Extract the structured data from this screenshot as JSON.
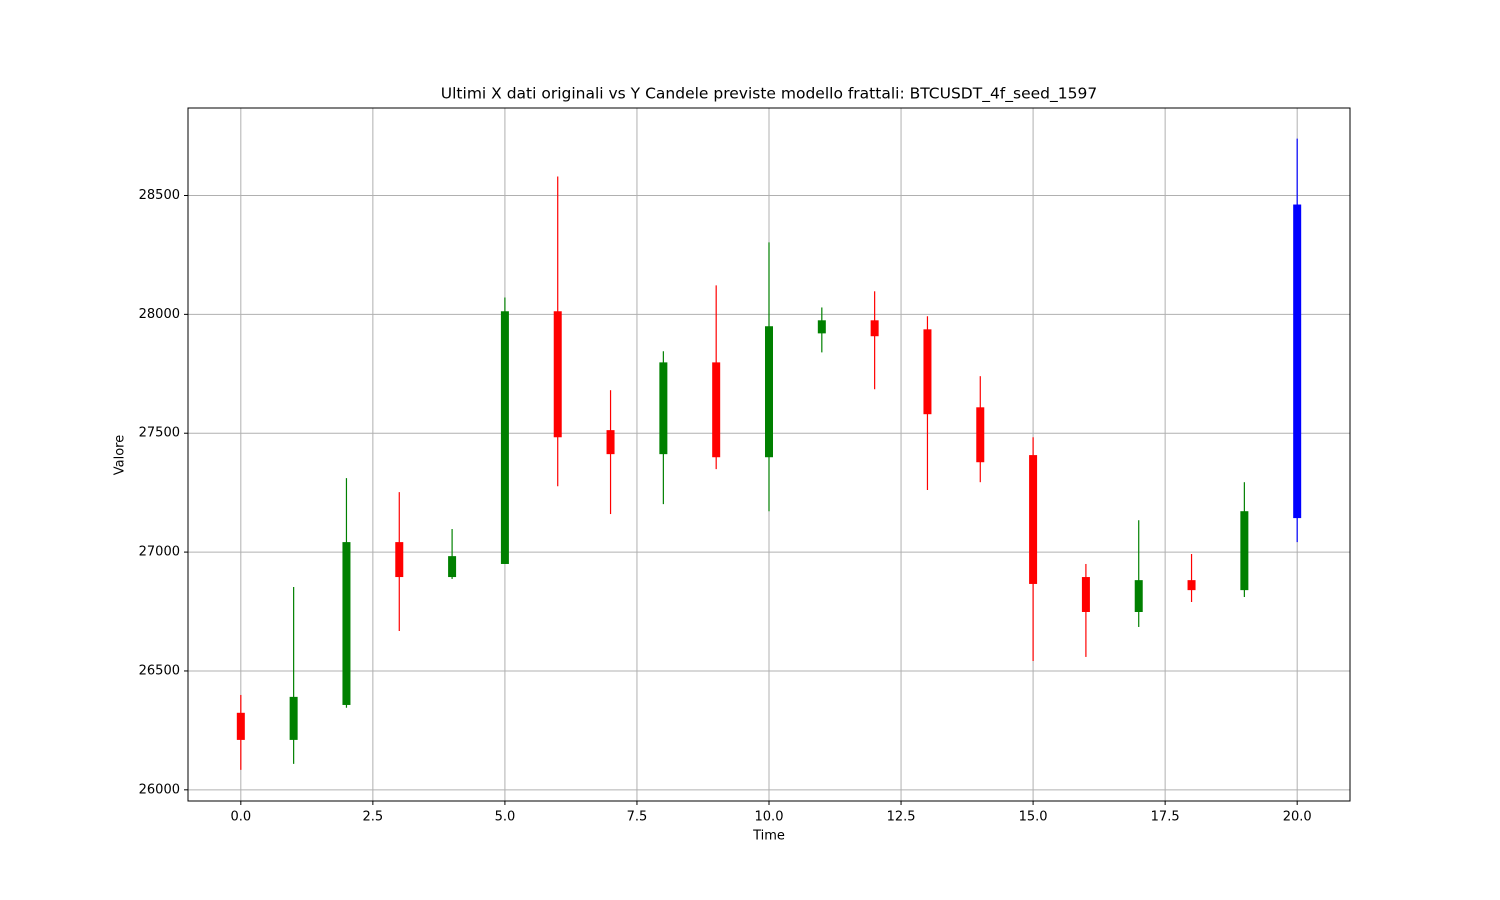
{
  "chart_data": {
    "type": "candlestick",
    "title": "Ultimi X dati originali vs Y Candele previste modello frattali: BTCUSDT_4f_seed_1597",
    "x_label": "Time",
    "y_label": "Valore",
    "x": [
      0,
      1,
      2,
      3,
      4,
      5,
      6,
      7,
      8,
      9,
      10,
      11,
      12,
      13,
      14,
      15,
      16,
      17,
      18,
      19,
      20
    ],
    "open": [
      26324,
      26210,
      26357,
      27042,
      26895,
      26950,
      28013,
      27513,
      27412,
      27798,
      27399,
      27920,
      27975,
      27937,
      27609,
      27408,
      26895,
      26748,
      26882,
      26840,
      27143
    ],
    "high": [
      26399,
      26853,
      27311,
      27252,
      27097,
      28071,
      28580,
      27681,
      27845,
      28122,
      28303,
      28029,
      28097,
      27992,
      27740,
      27483,
      26950,
      27134,
      26992,
      27294,
      28739
    ],
    "low": [
      26084,
      26109,
      26345,
      26668,
      26887,
      26950,
      27277,
      27160,
      27202,
      27349,
      27172,
      27840,
      27685,
      27261,
      27294,
      26542,
      26559,
      26685,
      26790,
      26811,
      27042
    ],
    "close": [
      26210,
      26391,
      27042,
      26895,
      26983,
      28013,
      27483,
      27412,
      27798,
      27399,
      27950,
      27975,
      27908,
      27580,
      27378,
      26866,
      26748,
      26882,
      26840,
      27172,
      28462
    ],
    "colors": [
      "red",
      "green",
      "green",
      "red",
      "green",
      "green",
      "red",
      "red",
      "green",
      "red",
      "green",
      "green",
      "red",
      "red",
      "red",
      "red",
      "red",
      "green",
      "red",
      "green",
      "blue"
    ],
    "xlim": [
      -1,
      21
    ],
    "ylim": [
      25953,
      28868
    ],
    "xticks": [
      {
        "value": 0,
        "label": "0.0"
      },
      {
        "value": 2.5,
        "label": "2.5"
      },
      {
        "value": 5,
        "label": "5.0"
      },
      {
        "value": 7.5,
        "label": "7.5"
      },
      {
        "value": 10,
        "label": "10.0"
      },
      {
        "value": 12.5,
        "label": "12.5"
      },
      {
        "value": 15,
        "label": "15.0"
      },
      {
        "value": 17.5,
        "label": "17.5"
      },
      {
        "value": 20,
        "label": "20.0"
      }
    ],
    "yticks": [
      26000,
      26500,
      27000,
      27500,
      28000,
      28500
    ],
    "grid": true
  }
}
